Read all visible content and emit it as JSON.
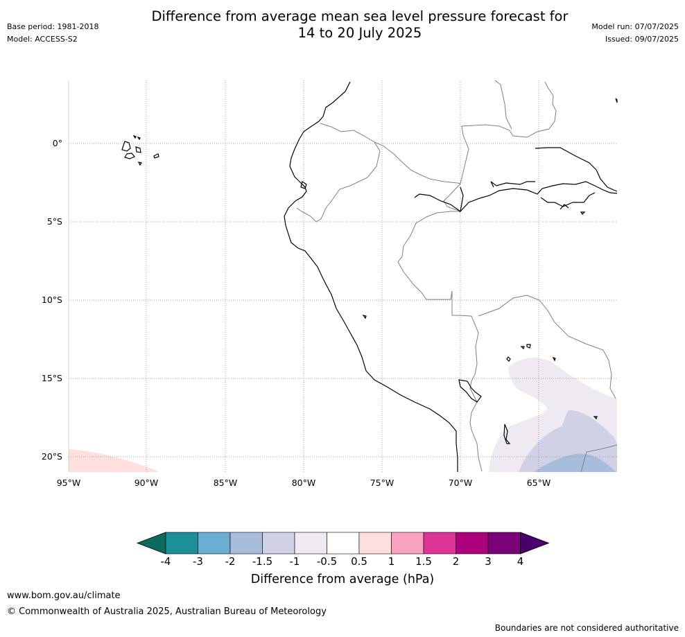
{
  "header": {
    "title_line1": "Difference from average mean sea level pressure forecast for",
    "title_line2": "14 to 20 July 2025",
    "base_period": "Base period: 1981-2018",
    "model": "Model: ACCESS-S2",
    "model_run": "Model run: 07/07/2025",
    "issued": "Issued: 09/07/2025"
  },
  "map": {
    "lon_labels": [
      "95°W",
      "90°W",
      "85°W",
      "80°W",
      "75°W",
      "70°W",
      "65°W"
    ],
    "lat_labels": [
      "0°",
      "5°S",
      "10°S",
      "15°S",
      "20°S"
    ],
    "extent": {
      "lon_min": -95,
      "lon_max": -60.2,
      "lat_min": -21,
      "lat_max": 4
    },
    "gridlines": "dotted"
  },
  "colorbar": {
    "title": "Difference from average (hPa)",
    "ticks": [
      "-4",
      "-3",
      "-2",
      "-1.5",
      "-1",
      "-0.5",
      "0.5",
      "1",
      "1.5",
      "2",
      "3",
      "4"
    ],
    "colors": [
      "#0d6b5d",
      "#1b9097",
      "#6aaed3",
      "#a8bcdc",
      "#d0d1e6",
      "#efe9f2",
      "#ffffff",
      "#fde0dd",
      "#f8a2bf",
      "#dd3497",
      "#ae017e",
      "#7a0177",
      "#49006a"
    ]
  },
  "footer": {
    "url": "www.bom.gov.au/climate",
    "copyright": "© Commonwealth of Australia 2025, Australian Bureau of Meteorology",
    "disclaimer": "Boundaries are not considered authoritative"
  }
}
